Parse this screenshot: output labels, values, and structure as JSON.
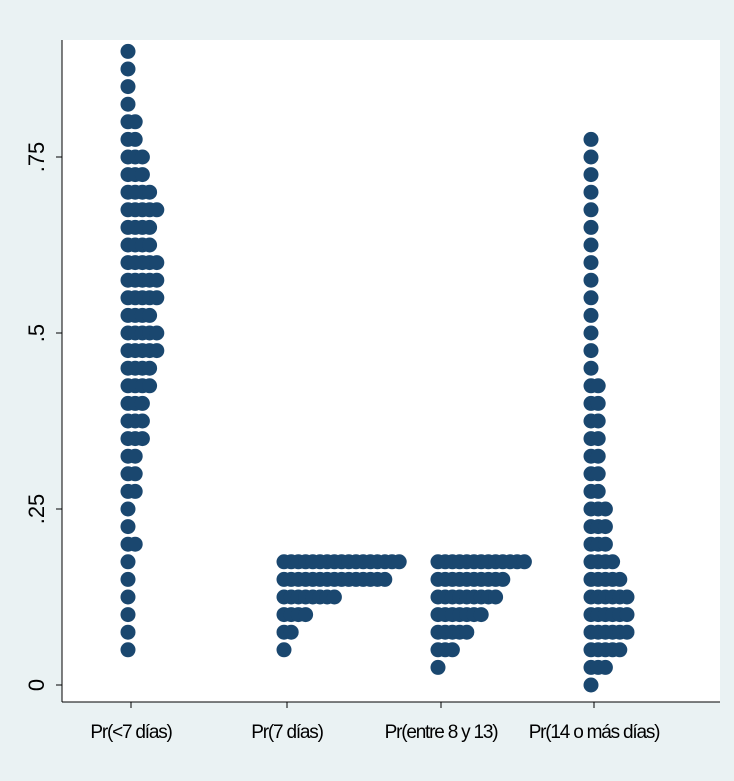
{
  "chart_data": {
    "type": "scatter",
    "subtype": "dot-strip-plot",
    "categories": [
      "Pr(<7 días)",
      "Pr(7 días)",
      "Pr(entre 8 y 13)",
      "Pr(14 o más días)"
    ],
    "ylim": [
      0,
      0.9
    ],
    "yticks": [
      0,
      0.25,
      0.5,
      0.75
    ],
    "ytick_labels": [
      "0",
      ".25",
      ".5",
      ".75"
    ],
    "grid": false,
    "legend": "none",
    "colors": {
      "marker": "#1a476f",
      "plot_background": "#ffffff",
      "outer_background": "#eaf2f3"
    },
    "series": [
      {
        "category": "Pr(<7 días)",
        "points": [
          {
            "y": 0.05,
            "n": 1
          },
          {
            "y": 0.075,
            "n": 1
          },
          {
            "y": 0.1,
            "n": 1
          },
          {
            "y": 0.125,
            "n": 1
          },
          {
            "y": 0.15,
            "n": 1
          },
          {
            "y": 0.175,
            "n": 1
          },
          {
            "y": 0.2,
            "n": 2
          },
          {
            "y": 0.225,
            "n": 1
          },
          {
            "y": 0.25,
            "n": 1
          },
          {
            "y": 0.275,
            "n": 2
          },
          {
            "y": 0.3,
            "n": 2
          },
          {
            "y": 0.325,
            "n": 2
          },
          {
            "y": 0.35,
            "n": 3
          },
          {
            "y": 0.375,
            "n": 3
          },
          {
            "y": 0.4,
            "n": 3
          },
          {
            "y": 0.425,
            "n": 4
          },
          {
            "y": 0.45,
            "n": 4
          },
          {
            "y": 0.475,
            "n": 5
          },
          {
            "y": 0.5,
            "n": 5
          },
          {
            "y": 0.525,
            "n": 4
          },
          {
            "y": 0.55,
            "n": 5
          },
          {
            "y": 0.575,
            "n": 5
          },
          {
            "y": 0.6,
            "n": 5
          },
          {
            "y": 0.625,
            "n": 4
          },
          {
            "y": 0.65,
            "n": 4
          },
          {
            "y": 0.675,
            "n": 5
          },
          {
            "y": 0.7,
            "n": 4
          },
          {
            "y": 0.725,
            "n": 3
          },
          {
            "y": 0.75,
            "n": 3
          },
          {
            "y": 0.775,
            "n": 2
          },
          {
            "y": 0.8,
            "n": 2
          },
          {
            "y": 0.825,
            "n": 1
          },
          {
            "y": 0.85,
            "n": 1
          },
          {
            "y": 0.875,
            "n": 1
          },
          {
            "y": 0.9,
            "n": 1
          }
        ]
      },
      {
        "category": "Pr(7 días)",
        "points": [
          {
            "y": 0.05,
            "n": 1
          },
          {
            "y": 0.075,
            "n": 2
          },
          {
            "y": 0.1,
            "n": 4
          },
          {
            "y": 0.125,
            "n": 8
          },
          {
            "y": 0.15,
            "n": 15
          },
          {
            "y": 0.175,
            "n": 17
          }
        ]
      },
      {
        "category": "Pr(entre 8 y 13)",
        "points": [
          {
            "y": 0.025,
            "n": 1
          },
          {
            "y": 0.05,
            "n": 3
          },
          {
            "y": 0.075,
            "n": 5
          },
          {
            "y": 0.1,
            "n": 7
          },
          {
            "y": 0.125,
            "n": 9
          },
          {
            "y": 0.15,
            "n": 10
          },
          {
            "y": 0.175,
            "n": 13
          }
        ]
      },
      {
        "category": "Pr(14 o más días)",
        "points": [
          {
            "y": 0.0,
            "n": 1
          },
          {
            "y": 0.025,
            "n": 3
          },
          {
            "y": 0.05,
            "n": 5
          },
          {
            "y": 0.075,
            "n": 6
          },
          {
            "y": 0.1,
            "n": 6
          },
          {
            "y": 0.125,
            "n": 6
          },
          {
            "y": 0.15,
            "n": 5
          },
          {
            "y": 0.175,
            "n": 4
          },
          {
            "y": 0.2,
            "n": 3
          },
          {
            "y": 0.225,
            "n": 3
          },
          {
            "y": 0.25,
            "n": 3
          },
          {
            "y": 0.275,
            "n": 2
          },
          {
            "y": 0.3,
            "n": 2
          },
          {
            "y": 0.325,
            "n": 2
          },
          {
            "y": 0.35,
            "n": 2
          },
          {
            "y": 0.375,
            "n": 2
          },
          {
            "y": 0.4,
            "n": 2
          },
          {
            "y": 0.425,
            "n": 2
          },
          {
            "y": 0.45,
            "n": 1
          },
          {
            "y": 0.475,
            "n": 1
          },
          {
            "y": 0.5,
            "n": 1
          },
          {
            "y": 0.525,
            "n": 1
          },
          {
            "y": 0.55,
            "n": 1
          },
          {
            "y": 0.575,
            "n": 1
          },
          {
            "y": 0.6,
            "n": 1
          },
          {
            "y": 0.625,
            "n": 1
          },
          {
            "y": 0.65,
            "n": 1
          },
          {
            "y": 0.675,
            "n": 1
          },
          {
            "y": 0.7,
            "n": 1
          },
          {
            "y": 0.725,
            "n": 1
          },
          {
            "y": 0.75,
            "n": 1
          },
          {
            "y": 0.775,
            "n": 1
          }
        ]
      }
    ]
  }
}
